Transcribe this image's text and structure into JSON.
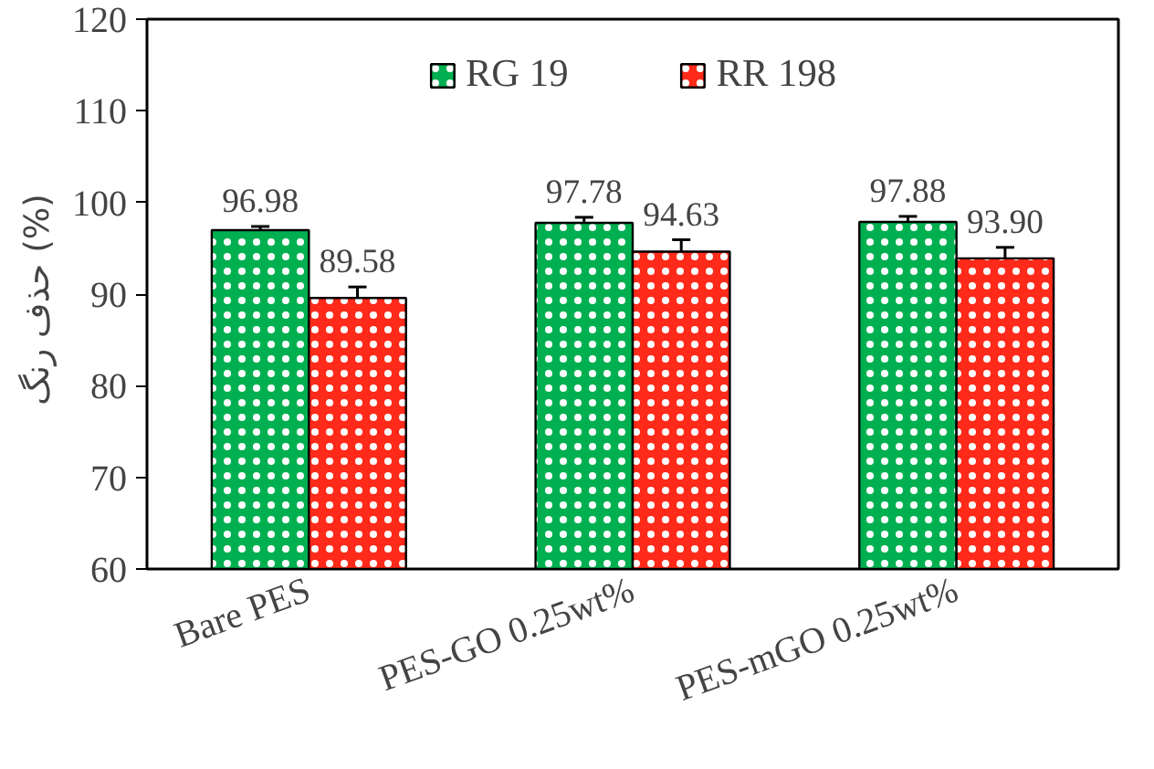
{
  "chart_data": {
    "type": "bar",
    "ylabel": "حذف رنگ  (%)",
    "categories": [
      "Bare PES",
      "PES-GO 0.25wt%",
      "PES-mGO 0.25wt%"
    ],
    "series": [
      {
        "name": "RG 19",
        "color": "#00b050",
        "values": [
          96.98,
          97.78,
          97.88
        ],
        "value_labels": [
          "96.98",
          "97.78",
          "97.88"
        ],
        "errors": [
          0.4,
          0.6,
          0.6
        ]
      },
      {
        "name": "RR 198",
        "color": "#ff2a1a",
        "values": [
          89.58,
          94.63,
          93.9
        ],
        "value_labels": [
          "89.58",
          "94.63",
          "93.90"
        ],
        "errors": [
          1.2,
          1.3,
          1.2
        ]
      }
    ],
    "ylim": [
      60,
      120
    ],
    "yticks": [
      60,
      70,
      80,
      90,
      100,
      110,
      120
    ],
    "legend": "top",
    "grid": false
  }
}
